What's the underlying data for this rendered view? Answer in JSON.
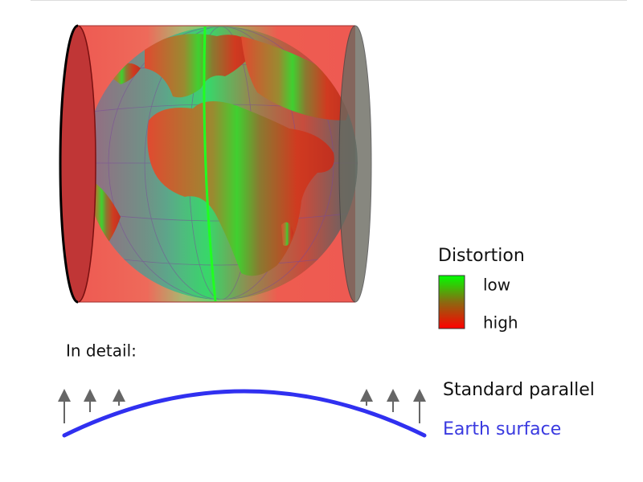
{
  "legend": {
    "title": "Distortion",
    "low": "low",
    "high": "high"
  },
  "detail": {
    "title": "In detail:",
    "standard_parallel": "Standard parallel",
    "earth_surface": "Earth surface"
  }
}
